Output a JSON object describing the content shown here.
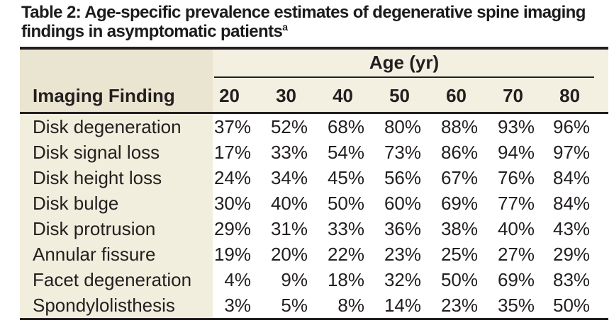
{
  "title": {
    "line1": "Table 2: Age-specific prevalence estimates of degenerative spine",
    "line2": "imaging findings in asymptomatic patients",
    "footnote_marker": "a"
  },
  "table": {
    "col_group_header": "Age (yr)",
    "row_header": "Imaging Finding",
    "ages": [
      "20",
      "30",
      "40",
      "50",
      "60",
      "70",
      "80"
    ],
    "rows": [
      {
        "label": "Disk degeneration",
        "values": [
          "37%",
          "52%",
          "68%",
          "80%",
          "88%",
          "93%",
          "96%"
        ]
      },
      {
        "label": "Disk signal loss",
        "values": [
          "17%",
          "33%",
          "54%",
          "73%",
          "86%",
          "94%",
          "97%"
        ]
      },
      {
        "label": "Disk height loss",
        "values": [
          "24%",
          "34%",
          "45%",
          "56%",
          "67%",
          "76%",
          "84%"
        ]
      },
      {
        "label": "Disk bulge",
        "values": [
          "30%",
          "40%",
          "50%",
          "60%",
          "69%",
          "77%",
          "84%"
        ]
      },
      {
        "label": "Disk protrusion",
        "values": [
          "29%",
          "31%",
          "33%",
          "36%",
          "38%",
          "40%",
          "43%"
        ]
      },
      {
        "label": "Annular fissure",
        "values": [
          "19%",
          "20%",
          "22%",
          "23%",
          "25%",
          "27%",
          "29%"
        ]
      },
      {
        "label": "Facet degeneration",
        "values": [
          "4%",
          "9%",
          "18%",
          "32%",
          "50%",
          "69%",
          "83%"
        ]
      },
      {
        "label": "Spondylolisthesis",
        "values": [
          "3%",
          "5%",
          "8%",
          "14%",
          "23%",
          "35%",
          "50%"
        ]
      }
    ]
  },
  "colors": {
    "rule": "#231f20",
    "header_label_bg": "#eae5d0",
    "header_data_bg": "#f3f0e1",
    "body_label_bg": "#f1eedd",
    "body_data_bg": "#ffffff",
    "text": "#231f20"
  }
}
